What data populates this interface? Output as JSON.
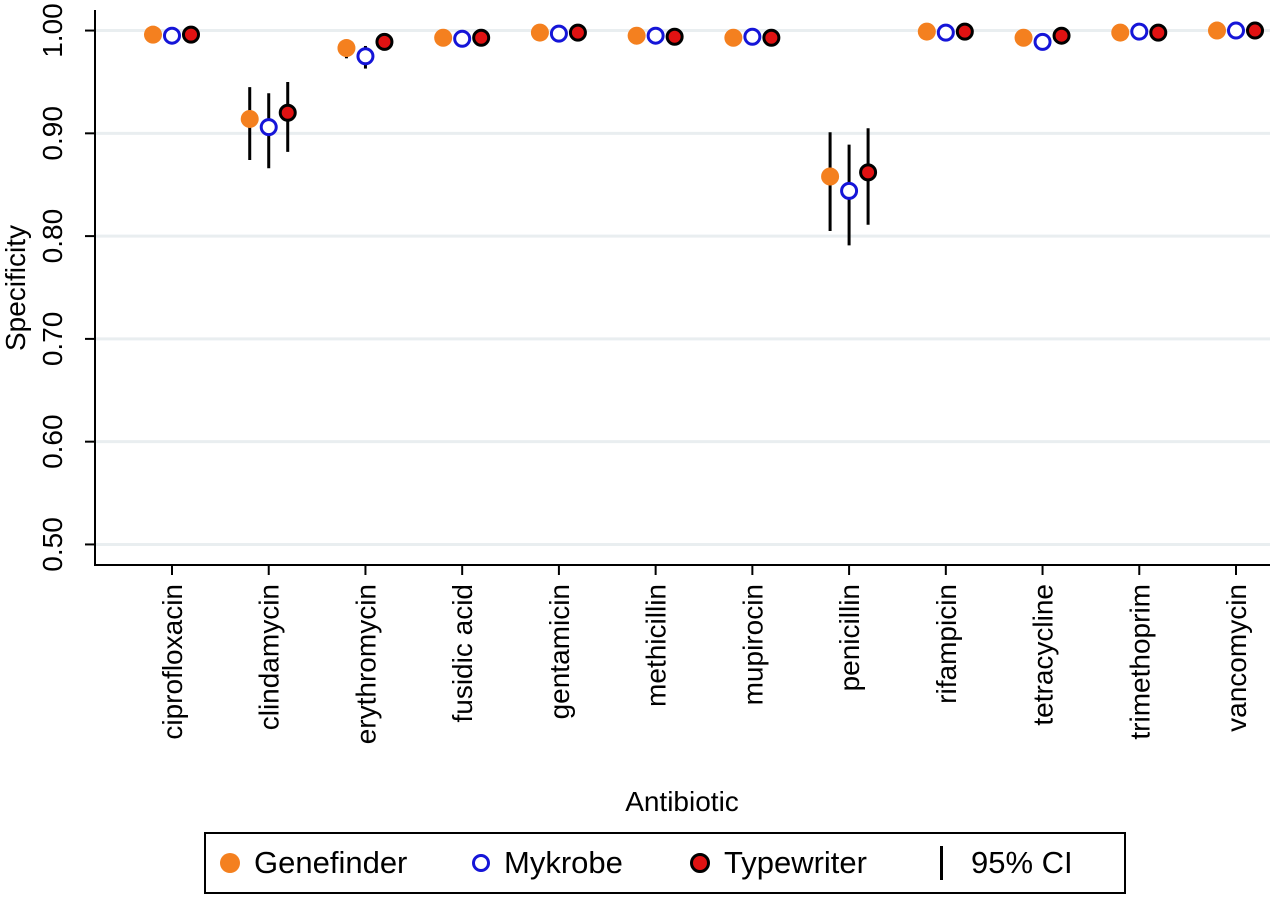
{
  "chart_data": {
    "type": "scatter",
    "ylabel": "Specificity",
    "xlabel": "Antibiotic",
    "ylim": [
      0.48,
      1.02
    ],
    "yticks": [
      "0.50",
      "0.60",
      "0.70",
      "0.80",
      "0.90",
      "1.00"
    ],
    "grid": true,
    "legend_position": "bottom",
    "categories": [
      "ciprofloxacin",
      "clindamycin",
      "erythromycin",
      "fusidic acid",
      "gentamicin",
      "methicillin",
      "mupirocin",
      "penicillin",
      "rifampicin",
      "tetracycline",
      "trimethoprim",
      "vancomycin"
    ],
    "series": [
      {
        "name": "Genefinder",
        "color": "#f4801f",
        "marker": "filled-circle",
        "values": [
          0.996,
          0.914,
          0.983,
          0.993,
          0.998,
          0.995,
          0.993,
          0.858,
          0.999,
          0.993,
          0.998,
          1.0
        ],
        "ci_low": [
          null,
          0.874,
          0.973,
          null,
          null,
          null,
          0.985,
          0.805,
          null,
          null,
          null,
          null
        ],
        "ci_high": [
          null,
          0.945,
          0.991,
          null,
          null,
          null,
          0.998,
          0.901,
          null,
          null,
          null,
          null
        ]
      },
      {
        "name": "Mykrobe",
        "color": "#1515d8",
        "marker": "hollow-circle",
        "values": [
          0.995,
          0.906,
          0.975,
          0.992,
          0.997,
          0.995,
          0.994,
          0.844,
          0.998,
          0.989,
          0.999,
          1.0
        ],
        "ci_low": [
          null,
          0.866,
          0.963,
          null,
          null,
          null,
          null,
          0.791,
          null,
          null,
          null,
          null
        ],
        "ci_high": [
          null,
          0.939,
          0.985,
          null,
          null,
          null,
          null,
          0.889,
          null,
          null,
          null,
          null
        ]
      },
      {
        "name": "Typewriter",
        "color": "#e01212",
        "marker": "filled-circle-black-outline",
        "values": [
          0.996,
          0.92,
          0.989,
          0.993,
          0.998,
          0.994,
          0.993,
          0.862,
          0.999,
          0.995,
          0.998,
          1.0
        ],
        "ci_low": [
          null,
          0.882,
          null,
          null,
          null,
          null,
          null,
          0.811,
          null,
          null,
          null,
          null
        ],
        "ci_high": [
          null,
          0.95,
          null,
          null,
          null,
          null,
          null,
          0.905,
          null,
          null,
          null,
          null
        ]
      }
    ]
  },
  "legend": {
    "genefinder": "Genefinder",
    "mykrobe": "Mykrobe",
    "typewriter": "Typewriter",
    "ci": "95% CI"
  }
}
